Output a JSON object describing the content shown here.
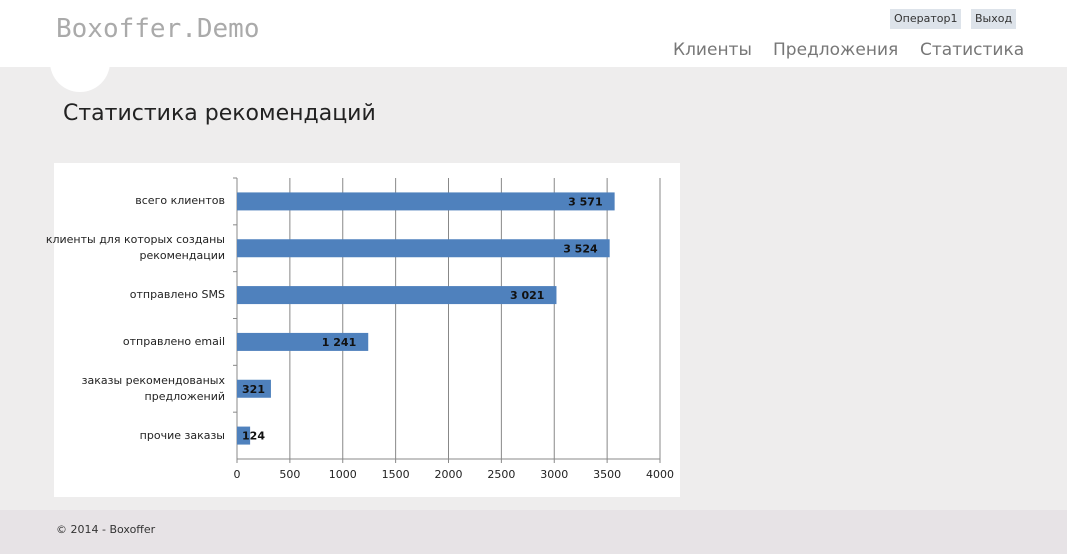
{
  "header": {
    "logo": "Boxoffer.Demo",
    "user": "Оператор1",
    "logout": "Выход",
    "nav": [
      "Клиенты",
      "Предложения",
      "Статистика"
    ]
  },
  "page_title": "Статистика рекомендаций",
  "chart_data": {
    "type": "bar",
    "orientation": "horizontal",
    "categories": [
      "всего клиентов",
      "клиенты для которых созданы рекомендации",
      "отправлено SMS",
      "отправлено email",
      "заказы рекомендованых предложений",
      "прочие заказы"
    ],
    "values": [
      3571,
      3524,
      3021,
      1241,
      321,
      124
    ],
    "value_labels": [
      "3 571",
      "3 524",
      "3 021",
      "1 241",
      "321",
      "124"
    ],
    "color": "#4f81bd",
    "xlim": [
      0,
      4000
    ],
    "xticks": [
      0,
      500,
      1000,
      1500,
      2000,
      2500,
      3000,
      3500,
      4000
    ],
    "grid": true
  },
  "footer": "© 2014 - Boxoffer"
}
